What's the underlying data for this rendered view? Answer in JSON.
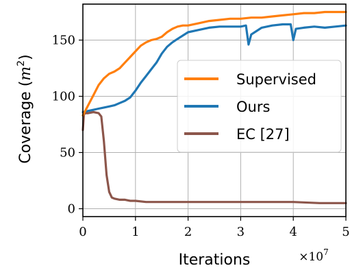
{
  "chart_data": {
    "type": "line",
    "title": "",
    "xlabel": "Iterations",
    "ylabel_prefix": "Coverage (",
    "ylabel_unit": "m",
    "ylabel_exp": "2",
    "ylabel_suffix": ")",
    "x_multiplier_base": "×10",
    "x_multiplier_exp": "7",
    "xlim": [
      0,
      5
    ],
    "ylim": [
      -7,
      182
    ],
    "xticks": [
      0,
      1,
      2,
      3,
      4,
      5
    ],
    "xtick_labels": [
      "0",
      "1",
      "2",
      "3",
      "4",
      "5"
    ],
    "yticks": [
      0,
      50,
      100,
      150
    ],
    "ytick_labels": [
      "0",
      "50",
      "100",
      "150"
    ],
    "grid": true,
    "legend_position": "center-right",
    "series": [
      {
        "name": "Supervised",
        "color": "#ff7f0e",
        "x": [
          0,
          0.1,
          0.2,
          0.3,
          0.4,
          0.5,
          0.6,
          0.7,
          0.8,
          0.9,
          1.0,
          1.1,
          1.2,
          1.3,
          1.4,
          1.5,
          1.6,
          1.7,
          1.8,
          1.9,
          2.0,
          2.2,
          2.4,
          2.6,
          2.8,
          3.0,
          3.2,
          3.4,
          3.6,
          3.8,
          4.0,
          4.2,
          4.4,
          4.6,
          4.8,
          5.0
        ],
        "y": [
          83,
          92,
          101,
          110,
          116,
          120,
          122,
          125,
          130,
          135,
          140,
          145,
          148,
          150,
          151,
          153,
          157,
          160,
          162,
          163,
          163,
          165,
          167,
          168,
          169,
          169,
          170,
          170,
          171,
          172,
          173,
          174,
          174,
          175,
          175,
          175
        ]
      },
      {
        "name": "Ours",
        "color": "#1f77b4",
        "x": [
          0,
          0.1,
          0.2,
          0.3,
          0.4,
          0.5,
          0.6,
          0.7,
          0.8,
          0.9,
          1.0,
          1.1,
          1.2,
          1.3,
          1.4,
          1.5,
          1.6,
          1.7,
          1.8,
          1.9,
          2.0,
          2.2,
          2.4,
          2.6,
          2.8,
          3.0,
          3.1,
          3.15,
          3.2,
          3.3,
          3.4,
          3.6,
          3.8,
          3.95,
          4.0,
          4.05,
          4.2,
          4.4,
          4.6,
          4.8,
          5.0
        ],
        "y": [
          86,
          87,
          88,
          89,
          90,
          91,
          92,
          94,
          96,
          99,
          105,
          112,
          118,
          124,
          130,
          138,
          144,
          148,
          151,
          154,
          157,
          159,
          161,
          162,
          162,
          162,
          163,
          146,
          155,
          158,
          161,
          163,
          164,
          164,
          150,
          160,
          161,
          162,
          161,
          162,
          163
        ]
      },
      {
        "name": "EC [27]",
        "color": "#8c564b",
        "x": [
          0,
          0.02,
          0.05,
          0.1,
          0.2,
          0.3,
          0.35,
          0.4,
          0.45,
          0.5,
          0.55,
          0.6,
          0.7,
          0.8,
          0.9,
          1.0,
          1.2,
          1.5,
          2.0,
          2.5,
          3.0,
          3.5,
          4.0,
          4.5,
          5.0
        ],
        "y": [
          70,
          84,
          85,
          85,
          86,
          85,
          82,
          60,
          30,
          15,
          10,
          9,
          8,
          8,
          7,
          7,
          6,
          6,
          6,
          6,
          6,
          6,
          6,
          5,
          5
        ]
      }
    ]
  }
}
